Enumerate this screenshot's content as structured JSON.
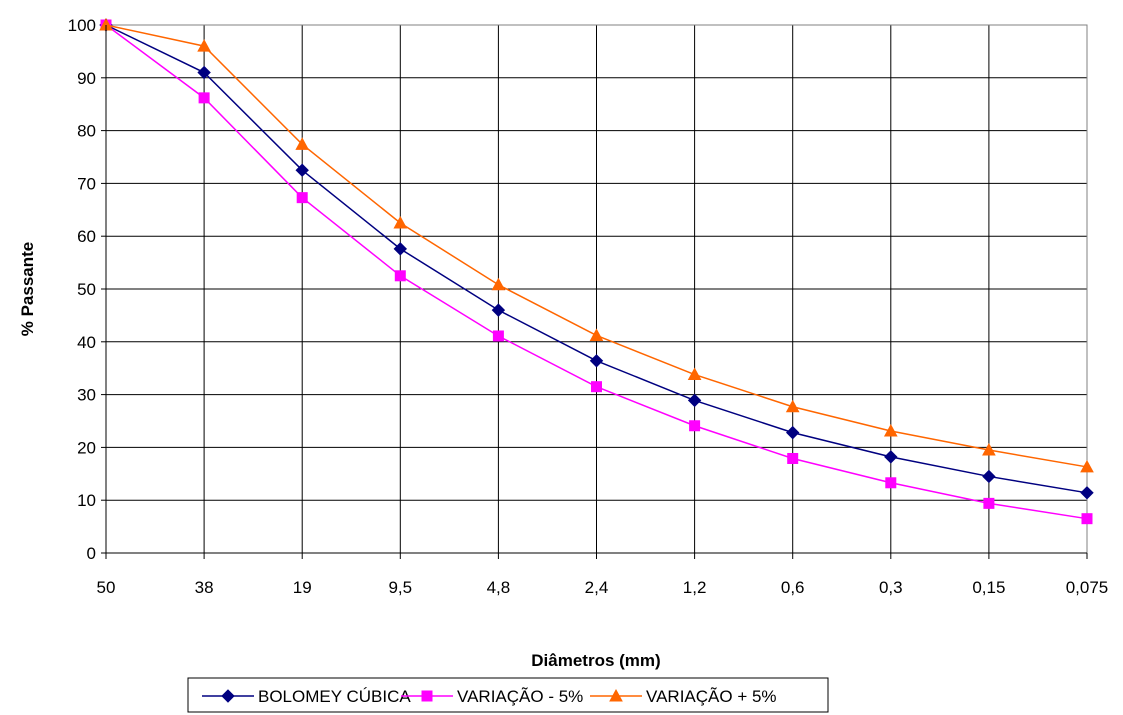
{
  "chart_data": {
    "type": "line",
    "title": "",
    "xlabel": "Diâmetros (mm)",
    "ylabel": "% Passante",
    "categories": [
      "50",
      "38",
      "19",
      "9,5",
      "4,8",
      "2,4",
      "1,2",
      "0,6",
      "0,3",
      "0,15",
      "0,075"
    ],
    "ylim": [
      0,
      100
    ],
    "yticks": [
      0,
      10,
      20,
      30,
      40,
      50,
      60,
      70,
      80,
      90,
      100
    ],
    "grid": true,
    "legend": "bottom",
    "series": [
      {
        "name": "BOLOMEY CÚBICA",
        "color": "#000080",
        "marker": "diamond",
        "values": [
          100,
          91,
          72.5,
          57.6,
          46,
          36.4,
          28.9,
          22.8,
          18.2,
          14.5,
          11.4
        ]
      },
      {
        "name": "VARIAÇÃO - 5%",
        "color": "#FF00FF",
        "marker": "square",
        "values": [
          100,
          86.2,
          67.3,
          52.5,
          41.1,
          31.5,
          24.1,
          17.9,
          13.3,
          9.4,
          6.5
        ]
      },
      {
        "name": "VARIAÇÃO + 5%",
        "color": "#FF6600",
        "marker": "triangle",
        "values": [
          100,
          96,
          77.4,
          62.5,
          50.8,
          41.2,
          33.8,
          27.7,
          23.1,
          19.5,
          16.3
        ]
      }
    ]
  }
}
